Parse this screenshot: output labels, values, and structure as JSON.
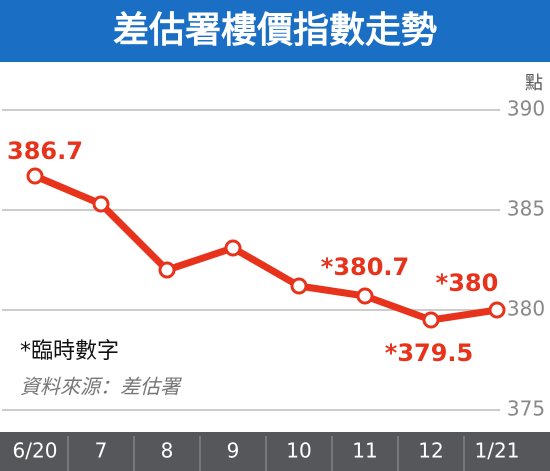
{
  "chart_data": {
    "type": "line",
    "title": "差估署樓價指數走勢",
    "y_label": "點",
    "categories": [
      "6/20",
      "7",
      "8",
      "9",
      "10",
      "11",
      "12",
      "1/21"
    ],
    "series": [
      {
        "name": "差估署樓價指數",
        "color": "#e8331c",
        "values": [
          386.7,
          385.3,
          382.0,
          383.1,
          381.2,
          380.7,
          379.5,
          380
        ],
        "value_labels": [
          "386.7",
          null,
          null,
          null,
          null,
          "*380.7",
          "*379.5",
          "*380"
        ]
      }
    ],
    "ylim": [
      374,
      391.5
    ],
    "yticks": [
      375,
      380,
      385,
      390
    ],
    "grid": true,
    "annotations": [
      "*臨時數字",
      "資料來源：差估署"
    ]
  }
}
